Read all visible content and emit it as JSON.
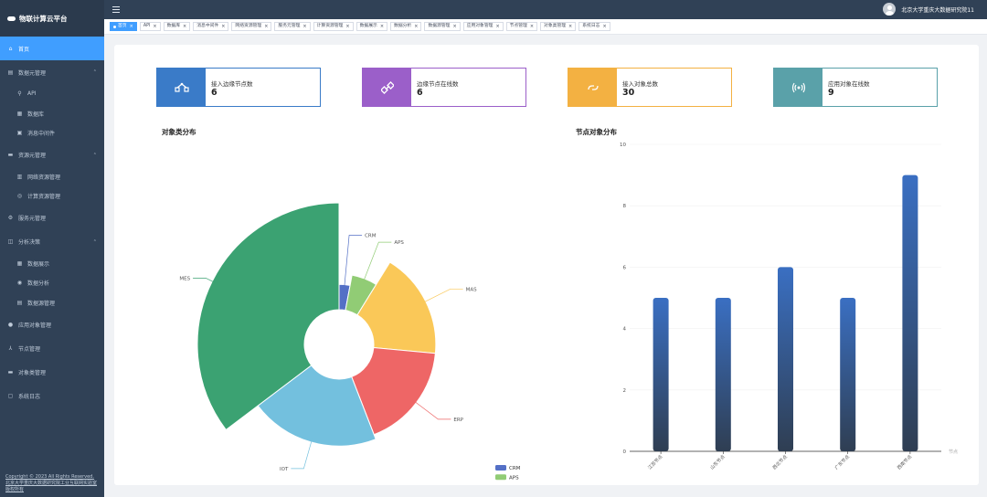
{
  "app": {
    "title": "物联计算云平台"
  },
  "sidebar": {
    "items": [
      {
        "label": "首页",
        "icon": "home-icon",
        "active": true
      },
      {
        "label": "数据元管理",
        "icon": "database-icon",
        "expanded": true
      },
      {
        "label": "API",
        "icon": "link-icon",
        "sub": true
      },
      {
        "label": "数据库",
        "icon": "db-icon",
        "sub": true
      },
      {
        "label": "消息中间件",
        "icon": "message-icon",
        "sub": true
      },
      {
        "label": "资源元管理",
        "icon": "resource-icon",
        "expanded": true
      },
      {
        "label": "网络资源管理",
        "icon": "network-icon",
        "sub": true
      },
      {
        "label": "计算资源管理",
        "icon": "compute-icon",
        "sub": true
      },
      {
        "label": "服务元管理",
        "icon": "service-icon"
      },
      {
        "label": "分析决策",
        "icon": "analysis-icon",
        "expanded": true
      },
      {
        "label": "数据展示",
        "icon": "display-icon",
        "sub": true
      },
      {
        "label": "数据分析",
        "icon": "chart-icon",
        "sub": true
      },
      {
        "label": "数据源管理",
        "icon": "datasource-icon",
        "sub": true
      },
      {
        "label": "应用对象管理",
        "icon": "app-object-icon"
      },
      {
        "label": "节点管理",
        "icon": "node-icon"
      },
      {
        "label": "对象类管理",
        "icon": "object-class-icon"
      },
      {
        "label": "系统日志",
        "icon": "log-icon"
      }
    ],
    "footer": [
      "Copyright © 2023 All Rights Reserved.",
      "北京大学重庆大数据研究院工业互联网实验室版权所有"
    ]
  },
  "header": {
    "user_name": "北京大学重庆大数据研究院11"
  },
  "tags": [
    {
      "label": "首页",
      "active": true
    },
    {
      "label": "API"
    },
    {
      "label": "数据库"
    },
    {
      "label": "消息中间件"
    },
    {
      "label": "网络资源管理"
    },
    {
      "label": "服务元管理"
    },
    {
      "label": "计算资源管理"
    },
    {
      "label": "数据展示"
    },
    {
      "label": "数据分析"
    },
    {
      "label": "数据源管理"
    },
    {
      "label": "应用对象管理"
    },
    {
      "label": "节点管理"
    },
    {
      "label": "对象类管理"
    },
    {
      "label": "系统日志"
    }
  ],
  "cards": [
    {
      "label": "接入边缘节点数",
      "value": "6",
      "color": "#3a7bc8",
      "icon": "edge-node-icon"
    },
    {
      "label": "边缘节点在线数",
      "value": "6",
      "color": "#9b5fc9",
      "icon": "link-node-icon"
    },
    {
      "label": "接入对象总数",
      "value": "30",
      "color": "#f3b142",
      "icon": "object-link-icon"
    },
    {
      "label": "应用对象在线数",
      "value": "9",
      "color": "#5aa1a9",
      "icon": "signal-icon"
    }
  ],
  "charts": {
    "pie_title": "对象类分布",
    "bar_title": "节点对象分布"
  },
  "chart_data": [
    {
      "type": "pie",
      "title": "对象类分布",
      "subtype": "rose",
      "series": [
        {
          "name": "CRM",
          "value": 1,
          "color": "#5470c6"
        },
        {
          "name": "APS",
          "value": 2,
          "color": "#91cc75"
        },
        {
          "name": "MAS",
          "value": 6,
          "color": "#fac858"
        },
        {
          "name": "ERP",
          "value": 6,
          "color": "#ee6666"
        },
        {
          "name": "IOT",
          "value": 7,
          "color": "#73c0de"
        },
        {
          "name": "MES",
          "value": 12,
          "color": "#3ba272"
        }
      ],
      "legend": "bottom-right"
    },
    {
      "type": "bar",
      "title": "节点对象分布",
      "categories": [
        "江苏节点",
        "山东节点",
        "西北节点",
        "广东节点",
        "西南节点"
      ],
      "values": [
        5,
        5,
        6,
        5,
        9
      ],
      "xlabel": "节点",
      "ylim": [
        0,
        10
      ],
      "yticks": [
        0,
        2,
        4,
        6,
        8,
        10
      ],
      "color_top": "#3a6fc2",
      "color_bottom": "#2f3e52"
    }
  ]
}
